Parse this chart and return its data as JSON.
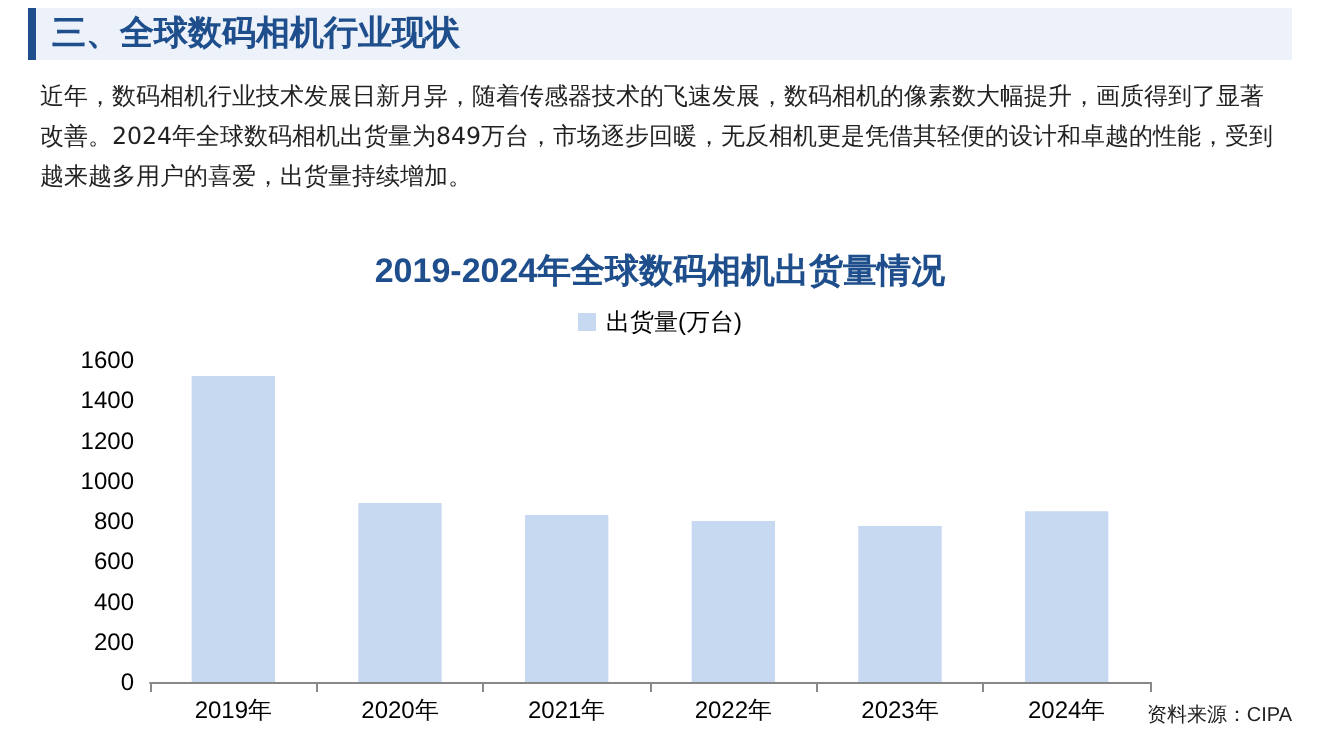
{
  "chart_data": {
    "type": "bar",
    "title": "2019-2024年全球数码相机出货量情况",
    "categories": [
      "2019年",
      "2020年",
      "2021年",
      "2022年",
      "2023年",
      "2024年"
    ],
    "series": [
      {
        "name": "出货量(万台)",
        "color": "#c6d9f1",
        "values": [
          1520,
          890,
          830,
          800,
          775,
          849
        ]
      }
    ],
    "ylim": [
      0,
      1600
    ],
    "yticks": [
      0,
      200,
      400,
      600,
      800,
      1000,
      1200,
      1400,
      1600
    ],
    "grid": false,
    "legend": "top",
    "annotations": [
      "三、全球数码相机行业现状",
      "近年，数码相机行业技术发展日新月异，随着传感器技术的飞速发展，数码相机的像素数大幅提升，画质得到了显著改善。2024年全球数码相机出货量为849万台，市场逐步回暖，无反相机更是凭借其轻便的设计和卓越的性能，受到越来越多用户的喜爱，出货量持续增加。",
      "资料来源：CIPA"
    ]
  }
}
